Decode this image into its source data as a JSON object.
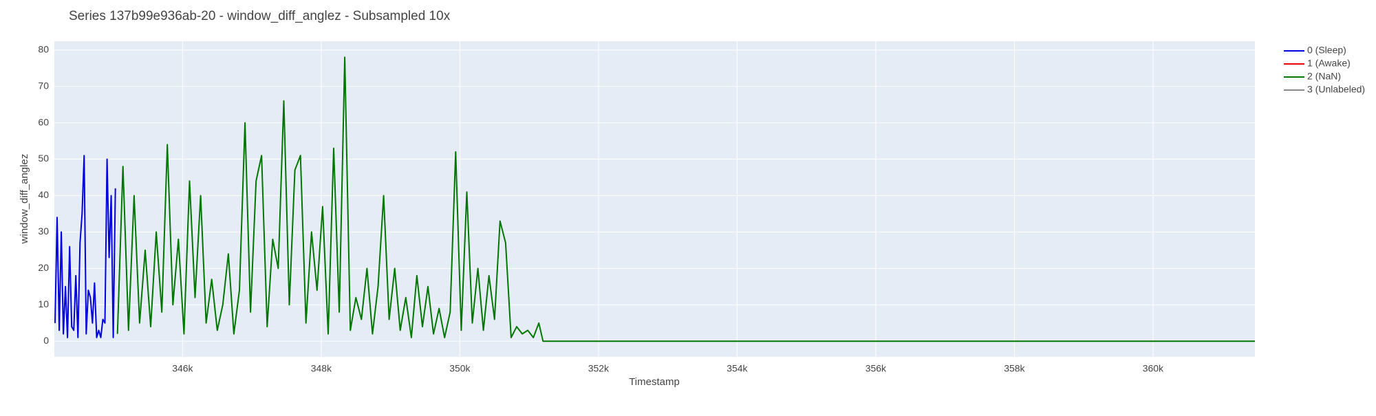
{
  "chart_data": {
    "type": "line",
    "title": "Series 137b99e936ab-20 - window_diff_anglez - Subsampled 10x",
    "x_label": "Timestamp",
    "y_label": "window_diff_anglez",
    "grid": true,
    "legend": "top-right-outside",
    "xlim": [
      344150,
      361470
    ],
    "ylim": [
      -4.3,
      82.4
    ],
    "xticks": [
      {
        "value": 346000,
        "label": "346k"
      },
      {
        "value": 348000,
        "label": "348k"
      },
      {
        "value": 350000,
        "label": "350k"
      },
      {
        "value": 352000,
        "label": "352k"
      },
      {
        "value": 354000,
        "label": "354k"
      },
      {
        "value": 356000,
        "label": "356k"
      },
      {
        "value": 358000,
        "label": "358k"
      },
      {
        "value": 360000,
        "label": "360k"
      }
    ],
    "yticks": [
      0,
      10,
      20,
      30,
      40,
      50,
      60,
      70,
      80
    ],
    "series": [
      {
        "name": "0 (Sleep)",
        "color": "#0000dd",
        "x": [
          344160,
          344190,
          344220,
          344250,
          344280,
          344310,
          344340,
          344370,
          344400,
          344430,
          344460,
          344490,
          344520,
          344550,
          344580,
          344610,
          344640,
          344670,
          344700,
          344730,
          344760,
          344790,
          344820,
          344850,
          344880,
          344910,
          344940,
          344970,
          345000,
          345030
        ],
        "values": [
          5,
          34,
          3,
          30,
          2,
          15,
          1,
          26,
          4,
          3,
          18,
          1,
          27,
          35,
          51,
          2,
          14,
          12,
          5,
          16,
          1,
          3,
          1,
          6,
          5,
          50,
          23,
          40,
          1,
          42
        ]
      },
      {
        "name": "1 (Awake)",
        "color": "#ee0000",
        "x": [],
        "values": []
      },
      {
        "name": "2 (NaN)",
        "color": "#007700",
        "x": [
          345060,
          345140,
          345220,
          345300,
          345380,
          345460,
          345540,
          345620,
          345700,
          345780,
          345860,
          345940,
          346020,
          346100,
          346180,
          346260,
          346340,
          346420,
          346500,
          346580,
          346660,
          346740,
          346820,
          346900,
          346980,
          347060,
          347140,
          347220,
          347300,
          347380,
          347460,
          347540,
          347620,
          347700,
          347780,
          347860,
          347940,
          348020,
          348100,
          348180,
          348260,
          348340,
          348420,
          348500,
          348580,
          348660,
          348740,
          348820,
          348900,
          348980,
          349060,
          349140,
          349220,
          349300,
          349380,
          349460,
          349540,
          349620,
          349700,
          349780,
          349860,
          349940,
          350020,
          350100,
          350180,
          350260,
          350340,
          350420,
          350500,
          350580,
          350660,
          350740,
          350820,
          350900,
          350980,
          351060,
          351140,
          351200,
          351260,
          361470
        ],
        "values": [
          2,
          48,
          3,
          40,
          5,
          25,
          4,
          30,
          8,
          54,
          10,
          28,
          2,
          44,
          12,
          40,
          5,
          17,
          3,
          10,
          24,
          2,
          14,
          60,
          8,
          44,
          51,
          4,
          28,
          20,
          66,
          10,
          47,
          51,
          5,
          30,
          14,
          37,
          2,
          53,
          8,
          78,
          3,
          12,
          6,
          20,
          2,
          15,
          40,
          6,
          20,
          3,
          12,
          1,
          18,
          4,
          15,
          2,
          9,
          1,
          8,
          52,
          3,
          41,
          5,
          20,
          3,
          18,
          6,
          33,
          27,
          1,
          4,
          2,
          3,
          1,
          5,
          0,
          0,
          0
        ]
      },
      {
        "name": "3 (Unlabeled)",
        "color": "#888888",
        "x": [],
        "values": []
      }
    ]
  }
}
